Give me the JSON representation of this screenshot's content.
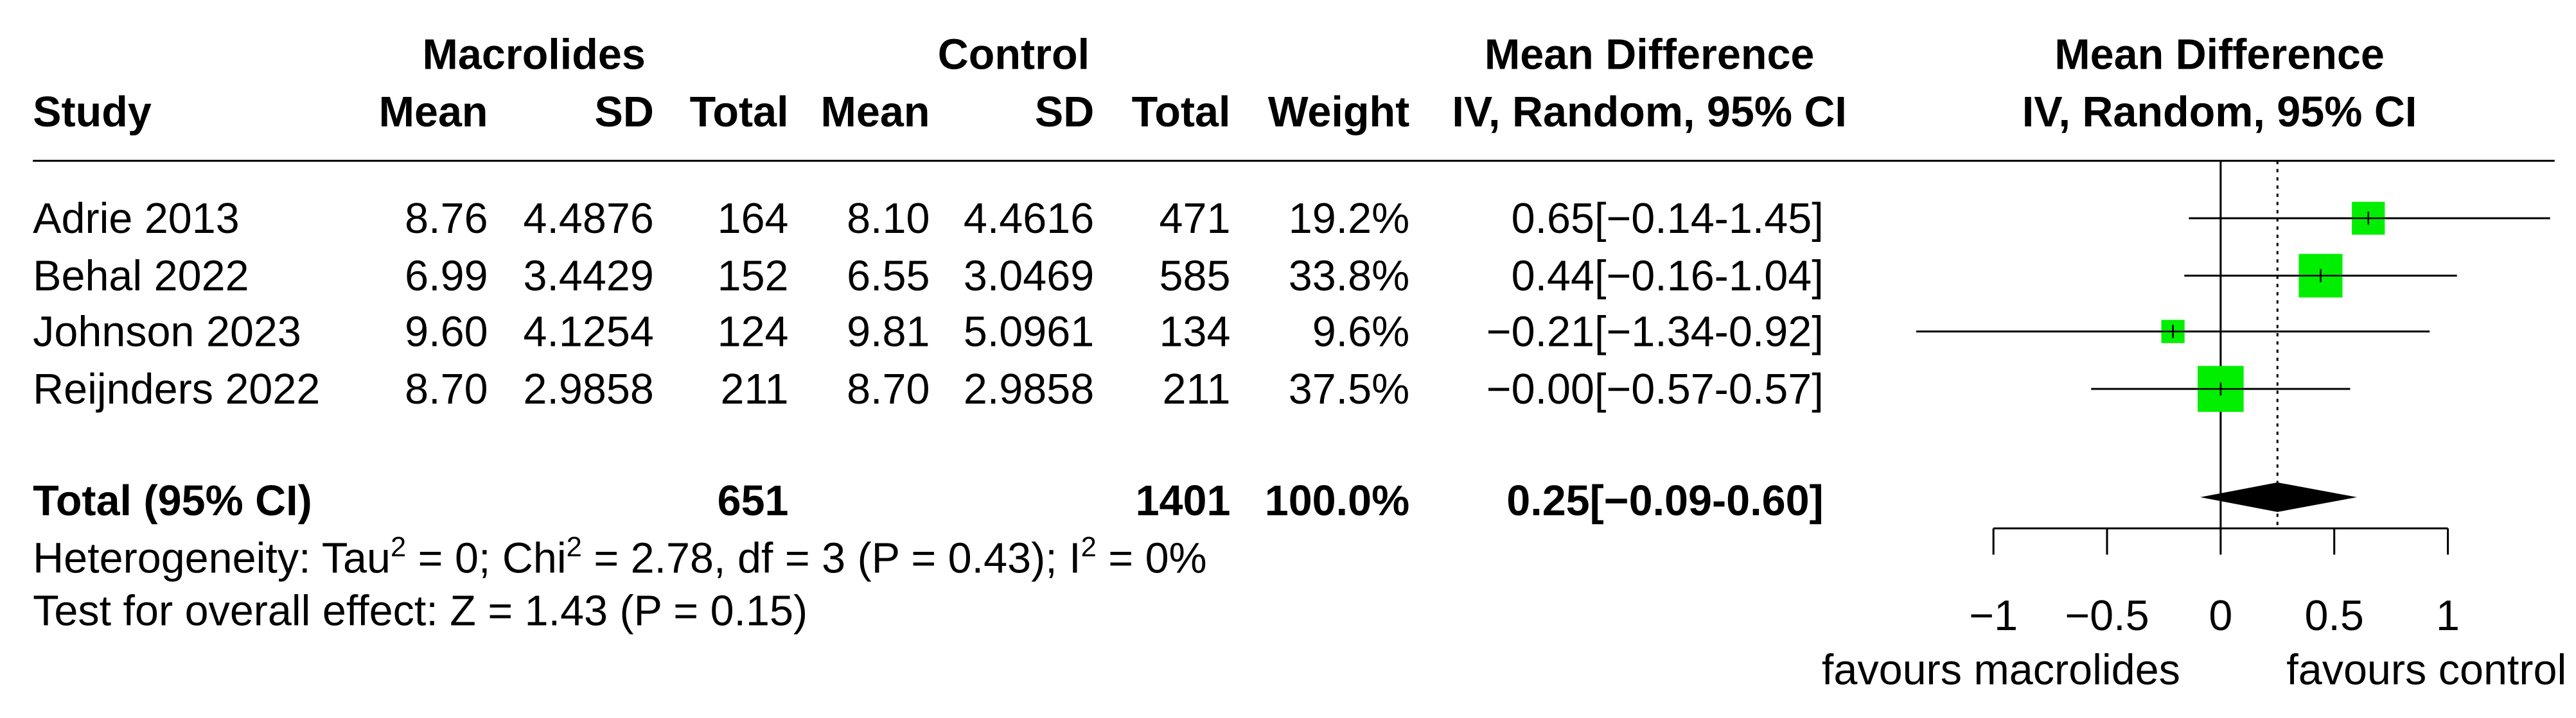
{
  "chart_data": {
    "type": "forest",
    "group_headers": [
      "Macrolides",
      "Control"
    ],
    "columns": [
      "Study",
      "Mean",
      "SD",
      "Total",
      "Mean",
      "SD",
      "Total",
      "Weight"
    ],
    "ci_header": [
      "Mean Difference",
      "IV, Random, 95% CI"
    ],
    "plot_header": [
      "Mean Difference",
      "IV, Random, 95% CI"
    ],
    "rows": [
      {
        "study": "Adrie 2013",
        "cells": [
          "8.76",
          "4.4876",
          "164",
          "8.10",
          "4.4616",
          "471"
        ],
        "weight": {
          "value": 19.2,
          "label": "19.2%"
        },
        "ci": {
          "value": 0.65,
          "lower": -0.14,
          "upper": 1.45,
          "label": "0.65[−0.14-1.45]"
        }
      },
      {
        "study": "Behal 2022",
        "cells": [
          "6.99",
          "3.4429",
          "152",
          "6.55",
          "3.0469",
          "585"
        ],
        "weight": {
          "value": 33.8,
          "label": "33.8%"
        },
        "ci": {
          "value": 0.44,
          "lower": -0.16,
          "upper": 1.04,
          "label": "0.44[−0.16-1.04]"
        }
      },
      {
        "study": "Johnson 2023",
        "cells": [
          "9.60",
          "4.1254",
          "124",
          "9.81",
          "5.0961",
          "134"
        ],
        "weight": {
          "value": 9.6,
          "label": "9.6%"
        },
        "ci": {
          "value": -0.21,
          "lower": -1.34,
          "upper": 0.92,
          "label": "−0.21[−1.34-0.92]"
        }
      },
      {
        "study": "Reijnders 2022",
        "cells": [
          "8.70",
          "2.9858",
          "211",
          "8.70",
          "2.9858",
          "211"
        ],
        "weight": {
          "value": 37.5,
          "label": "37.5%"
        },
        "ci": {
          "value": 0.0,
          "lower": -0.57,
          "upper": 0.57,
          "label": "−0.00[−0.57-0.57]"
        }
      }
    ],
    "total": {
      "study": "Total (95% CI)",
      "cells": [
        "651",
        "1401"
      ],
      "weight": {
        "value": 100.0,
        "label": "100.0%"
      },
      "ci": {
        "value": 0.25,
        "lower": -0.09,
        "upper": 0.6,
        "label": "0.25[−0.09-0.60]"
      }
    },
    "heterogeneity": [
      "Heterogeneity: Tau",
      "2",
      " = 0; Chi",
      "2",
      " = 2.78, df = 3 (P = 0.43); I",
      "2",
      " = 0%"
    ],
    "overall_effect": "Test for overall effect: Z = 1.43 (P = 0.15)",
    "xlim": [
      -1.35,
      1.47
    ],
    "xticks": [
      {
        "value": -1,
        "label": "−1"
      },
      {
        "value": -0.5,
        "label": "−0.5"
      },
      0,
      0.5,
      1
    ],
    "x_labels": [
      "favours macrolides",
      "favours control"
    ],
    "marker_color": "#00ee00"
  }
}
